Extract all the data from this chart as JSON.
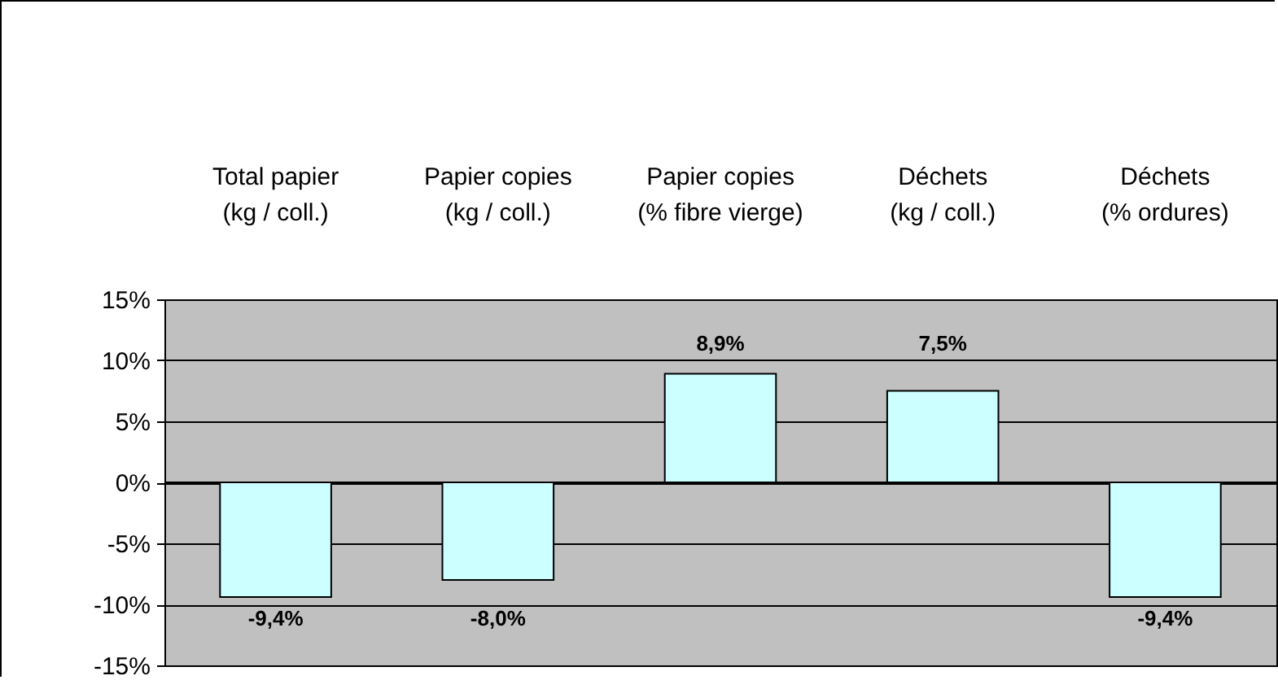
{
  "chart_data": {
    "type": "bar",
    "categories": [
      "Total papier\n(kg / coll.)",
      "Papier copies\n(kg / coll.)",
      "Papier copies\n(% fibre vierge)",
      "Déchets\n(kg / coll.)",
      "Déchets\n(% ordures)"
    ],
    "values": [
      -9.4,
      -8.0,
      8.9,
      7.5,
      -9.4
    ],
    "value_labels": [
      "-9,4%",
      "-8,0%",
      "8,9%",
      "7,5%",
      "-9,4%"
    ],
    "color": "#ccffff",
    "ylim": [
      -15,
      15
    ],
    "yticks": [
      {
        "value": -15,
        "label": "-15%"
      },
      {
        "value": -10,
        "label": "-10%"
      },
      {
        "value": -5,
        "label": "-5%"
      },
      {
        "value": 0,
        "label": "0%"
      },
      {
        "value": 5,
        "label": "5%"
      },
      {
        "value": 10,
        "label": "10%"
      },
      {
        "value": 15,
        "label": "15%"
      }
    ],
    "grid": true
  }
}
